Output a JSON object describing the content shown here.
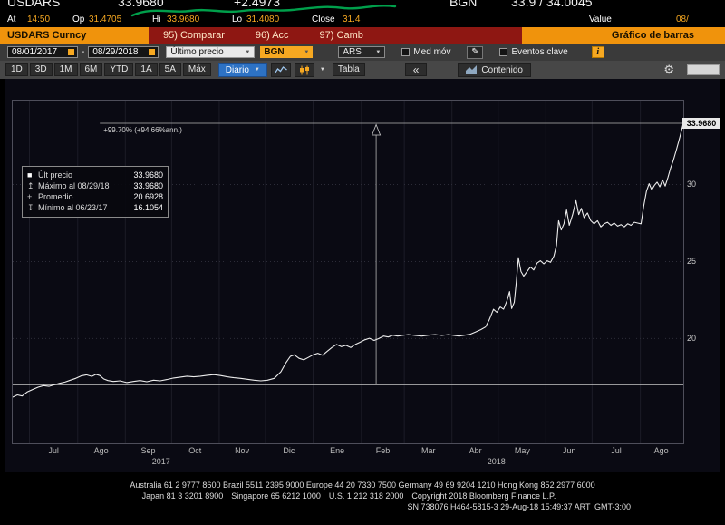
{
  "quote": {
    "ticker": "USDARS",
    "last": "33.9680",
    "change": "+2.4973",
    "source": "BGN",
    "bid_ask": "33.9 / 34.0045",
    "row2": {
      "at_label": "At",
      "time": "14:50",
      "op_label": "Op",
      "op": "31.4705",
      "hi_label": "Hi",
      "hi": "33.9680",
      "lo_label": "Lo",
      "lo": "31.4080",
      "close_label": "Close",
      "close": "31.4",
      "value_label": "Value",
      "value_date": "08/"
    }
  },
  "menubar": {
    "security": "USDARS Curncy",
    "items": [
      "95) Comparar",
      "96) Acc",
      "97) Camb"
    ],
    "title": "Gráfico de barras"
  },
  "filters": {
    "date_from": "08/01/2017",
    "separator": "-",
    "date_to": "08/29/2018",
    "price_field": "Último precio",
    "source": "BGN",
    "currency": "ARS",
    "mov_avg_label": "Med móv",
    "events_label": "Eventos clave",
    "info": "i"
  },
  "toolbar": {
    "periods": [
      "1D",
      "3D",
      "1M",
      "6M",
      "YTD",
      "1A",
      "5A",
      "Máx"
    ],
    "frequency": "Diario",
    "table_label": "Tabla",
    "collapse_label": "«",
    "content_label": "Contenido"
  },
  "colors": {
    "amber": "#f6a821",
    "menubar_orange": "#f0930c",
    "menu_red": "#8e1712",
    "frequency_blue": "#2d72c4",
    "price_line": "#ededed",
    "scribble_green": "#00a84f"
  },
  "chart_data": {
    "type": "line",
    "symbol": "USDARS Curncy",
    "ylabel": "",
    "xlabel": "",
    "y_axis": {
      "min": 13.2,
      "max": 35.44,
      "ticks": [
        30,
        25,
        20
      ]
    },
    "last_price": 33.968,
    "last_price_label": "33.9680",
    "reference_price": 17.01,
    "annotation": {
      "label": "+99.70% (+94.66%ann.)",
      "price": 33.968,
      "line_start_pct": 13,
      "vertical_pct": 54.2
    },
    "legend": {
      "rows": [
        {
          "marker": "■",
          "label": "Últ precio",
          "value": "33.9680"
        },
        {
          "marker": "↥",
          "label": "Máximo al 08/29/18",
          "value": "33.9680"
        },
        {
          "marker": "+",
          "label": "Promedio",
          "value": "20.6928"
        },
        {
          "marker": "↧",
          "label": "Mínimo al 06/23/17",
          "value": "16.1054"
        }
      ]
    },
    "x_ticks": [
      {
        "label": "Jul",
        "pos": 6.1
      },
      {
        "label": "Ago",
        "pos": 13.2
      },
      {
        "label": "Sep",
        "pos": 20.2
      },
      {
        "label": "Oct",
        "pos": 27.2
      },
      {
        "label": "Nov",
        "pos": 34.2
      },
      {
        "label": "Dic",
        "pos": 41.2
      },
      {
        "label": "Ene",
        "pos": 48.4
      },
      {
        "label": "Feb",
        "pos": 55.2
      },
      {
        "label": "Mar",
        "pos": 62
      },
      {
        "label": "Abr",
        "pos": 69
      },
      {
        "label": "May",
        "pos": 76
      },
      {
        "label": "Jun",
        "pos": 83
      },
      {
        "label": "Jul",
        "pos": 90
      },
      {
        "label": "Ago",
        "pos": 96.7
      }
    ],
    "year_ticks": [
      {
        "label": "2017",
        "pos": 22.4
      },
      {
        "label": "2018",
        "pos": 72.4
      }
    ],
    "month_boundaries_pct": [
      2.5,
      9.7,
      16.8,
      23.7,
      30.8,
      37.7,
      44.8,
      52,
      58.4,
      65.5,
      72.4,
      79.5,
      86.4,
      93.6
    ],
    "points": [
      [
        0,
        16.2
      ],
      [
        0.7,
        16.35
      ],
      [
        1.4,
        16.28
      ],
      [
        2.2,
        16.55
      ],
      [
        3,
        16.7
      ],
      [
        3.8,
        16.85
      ],
      [
        4.6,
        16.95
      ],
      [
        5.4,
        16.9
      ],
      [
        6.2,
        17.0
      ],
      [
        7,
        17.1
      ],
      [
        7.8,
        17.18
      ],
      [
        8.6,
        17.3
      ],
      [
        9.4,
        17.42
      ],
      [
        10.2,
        17.58
      ],
      [
        11,
        17.65
      ],
      [
        11.8,
        17.55
      ],
      [
        12.4,
        17.68
      ],
      [
        13,
        17.6
      ],
      [
        13.6,
        17.38
      ],
      [
        14.2,
        17.28
      ],
      [
        15,
        17.22
      ],
      [
        16,
        17.26
      ],
      [
        17,
        17.15
      ],
      [
        18,
        17.22
      ],
      [
        19,
        17.28
      ],
      [
        20,
        17.2
      ],
      [
        21,
        17.3
      ],
      [
        22,
        17.26
      ],
      [
        23,
        17.34
      ],
      [
        24,
        17.44
      ],
      [
        25,
        17.5
      ],
      [
        26,
        17.56
      ],
      [
        27,
        17.52
      ],
      [
        28,
        17.56
      ],
      [
        29,
        17.62
      ],
      [
        30,
        17.66
      ],
      [
        31,
        17.6
      ],
      [
        32,
        17.52
      ],
      [
        33,
        17.46
      ],
      [
        34,
        17.42
      ],
      [
        35,
        17.36
      ],
      [
        36,
        17.3
      ],
      [
        37,
        17.26
      ],
      [
        38,
        17.3
      ],
      [
        39,
        17.42
      ],
      [
        40,
        17.85
      ],
      [
        40.7,
        18.4
      ],
      [
        41.4,
        18.85
      ],
      [
        42,
        18.95
      ],
      [
        42.7,
        18.72
      ],
      [
        43.4,
        18.62
      ],
      [
        44.1,
        18.78
      ],
      [
        44.8,
        18.95
      ],
      [
        45.5,
        19.05
      ],
      [
        46.2,
        18.92
      ],
      [
        46.9,
        19.18
      ],
      [
        47.6,
        19.42
      ],
      [
        48.3,
        19.62
      ],
      [
        49,
        19.48
      ],
      [
        49.7,
        19.56
      ],
      [
        50.4,
        19.42
      ],
      [
        51.1,
        19.62
      ],
      [
        51.8,
        19.76
      ],
      [
        52.5,
        19.92
      ],
      [
        53.2,
        20.02
      ],
      [
        53.9,
        19.88
      ],
      [
        54.6,
        20.0
      ],
      [
        55.3,
        20.16
      ],
      [
        56,
        20.1
      ],
      [
        56.7,
        20.22
      ],
      [
        57.4,
        20.16
      ],
      [
        58.1,
        20.2
      ],
      [
        59,
        20.26
      ],
      [
        60,
        20.2
      ],
      [
        61,
        20.16
      ],
      [
        62,
        20.22
      ],
      [
        63,
        20.26
      ],
      [
        64,
        20.2
      ],
      [
        65,
        20.26
      ],
      [
        65.8,
        20.2
      ],
      [
        66.6,
        20.16
      ],
      [
        67.4,
        20.22
      ],
      [
        68.2,
        20.28
      ],
      [
        69,
        20.42
      ],
      [
        69.8,
        20.58
      ],
      [
        70.5,
        20.75
      ],
      [
        71.1,
        21.25
      ],
      [
        71.7,
        21.9
      ],
      [
        72.2,
        21.7
      ],
      [
        72.7,
        22.05
      ],
      [
        73.2,
        21.9
      ],
      [
        73.7,
        22.45
      ],
      [
        74.1,
        23.05
      ],
      [
        74.4,
        21.95
      ],
      [
        74.8,
        22.35
      ],
      [
        75.1,
        23.65
      ],
      [
        75.4,
        25.25
      ],
      [
        75.8,
        24.35
      ],
      [
        76.2,
        24.05
      ],
      [
        76.7,
        24.35
      ],
      [
        77.2,
        24.65
      ],
      [
        77.7,
        24.45
      ],
      [
        78.2,
        24.9
      ],
      [
        78.7,
        25.05
      ],
      [
        79.2,
        24.85
      ],
      [
        79.7,
        25.05
      ],
      [
        80.2,
        24.95
      ],
      [
        80.7,
        25.35
      ],
      [
        81.1,
        26.05
      ],
      [
        81.4,
        27.65
      ],
      [
        81.8,
        27.05
      ],
      [
        82.2,
        27.45
      ],
      [
        82.6,
        28.35
      ],
      [
        83,
        27.35
      ],
      [
        83.5,
        28.05
      ],
      [
        84,
        28.95
      ],
      [
        84.4,
        28.05
      ],
      [
        84.8,
        28.45
      ],
      [
        85.2,
        27.85
      ],
      [
        85.7,
        28.15
      ],
      [
        86.2,
        27.65
      ],
      [
        86.7,
        27.45
      ],
      [
        87.2,
        27.65
      ],
      [
        87.7,
        27.25
      ],
      [
        88.2,
        27.45
      ],
      [
        88.7,
        27.55
      ],
      [
        89.2,
        27.35
      ],
      [
        89.7,
        27.5
      ],
      [
        90.2,
        27.3
      ],
      [
        90.7,
        27.4
      ],
      [
        91.2,
        27.25
      ],
      [
        91.7,
        27.45
      ],
      [
        92.2,
        27.35
      ],
      [
        92.7,
        27.55
      ],
      [
        93.2,
        27.5
      ],
      [
        93.7,
        27.45
      ],
      [
        94.1,
        28.6
      ],
      [
        94.5,
        29.55
      ],
      [
        94.9,
        30.05
      ],
      [
        95.3,
        29.65
      ],
      [
        95.7,
        29.95
      ],
      [
        96.1,
        30.15
      ],
      [
        96.5,
        29.85
      ],
      [
        96.9,
        30.3
      ],
      [
        97.3,
        29.9
      ],
      [
        97.7,
        30.45
      ],
      [
        98.1,
        31.05
      ],
      [
        98.5,
        31.55
      ],
      [
        99,
        32.3
      ],
      [
        99.5,
        33.1
      ],
      [
        100,
        33.97
      ]
    ]
  },
  "footer": {
    "line1": "Australia 61 2 9777 8600 Brazil 5511 2395 9000 Europe 44 20 7330 7500 Germany 49 69 9204 1210 Hong Kong 852 2977 6000",
    "line2": "Japan 81 3 3201 8900 Singapore 65 6212 1000 U.S. 1 212 318 2000 Copyright 2018 Bloomberg Finance L.P.",
    "line3": "SN 738076 H464-5815-3 29-Aug-18 15:49:37 ART GMT-3:00"
  }
}
